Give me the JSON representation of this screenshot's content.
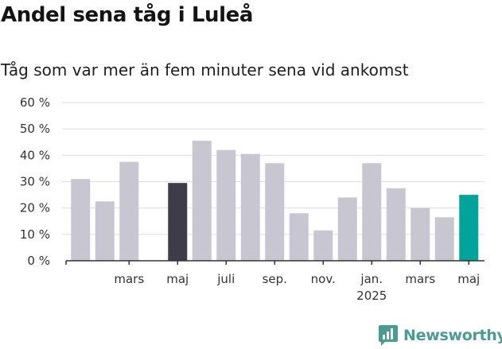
{
  "title": "Andel sena tåg i Luleå",
  "subtitle": "Tåg som var mer än fem minuter sena vid ankomst",
  "logo": {
    "text": "Newsworthy",
    "icon": "newsworthy-chart-bubble-icon"
  },
  "colors": {
    "default_bar": "#c8c6d0",
    "highlight_bar": "#3e3c48",
    "latest_bar": "#00a49a",
    "grid": "#dddddd",
    "axis": "#333333",
    "brand": "#4a9c93"
  },
  "chart_data": {
    "type": "bar",
    "title": "Andel sena tåg i Luleå",
    "subtitle": "Tåg som var mer än fem minuter sena vid ankomst",
    "categories": [
      "2024-01",
      "2024-02",
      "2024-03",
      "2024-04",
      "2024-05",
      "2024-06",
      "2024-07",
      "2024-08",
      "2024-09",
      "2024-10",
      "2024-11",
      "2024-12",
      "2025-01",
      "2025-02",
      "2025-03",
      "2025-04",
      "2025-05"
    ],
    "values": [
      31,
      22.5,
      37.5,
      null,
      29.5,
      45.5,
      42,
      40.5,
      37,
      18,
      11.5,
      24,
      37,
      27.5,
      20,
      16.5,
      25
    ],
    "highlight": {
      "2024-05": "highlight_bar",
      "2025-05": "latest_bar"
    },
    "ylim": [
      0,
      60
    ],
    "yticks": [
      0,
      10,
      20,
      30,
      40,
      50,
      60
    ],
    "ytick_labels": [
      "0 %",
      "10 %",
      "20 %",
      "30 %",
      "40 %",
      "50 %",
      "60 %"
    ],
    "xticks": [
      {
        "category": "2024-03",
        "label": "mars",
        "sublabel": ""
      },
      {
        "category": "2024-05",
        "label": "maj",
        "sublabel": ""
      },
      {
        "category": "2024-07",
        "label": "juli",
        "sublabel": ""
      },
      {
        "category": "2024-09",
        "label": "sep.",
        "sublabel": ""
      },
      {
        "category": "2024-11",
        "label": "nov.",
        "sublabel": ""
      },
      {
        "category": "2025-01",
        "label": "jan.",
        "sublabel": "2025"
      },
      {
        "category": "2025-03",
        "label": "mars",
        "sublabel": ""
      },
      {
        "category": "2025-05",
        "label": "maj",
        "sublabel": ""
      }
    ],
    "xlabel": "",
    "ylabel": "",
    "grid": true,
    "legend": "none"
  }
}
